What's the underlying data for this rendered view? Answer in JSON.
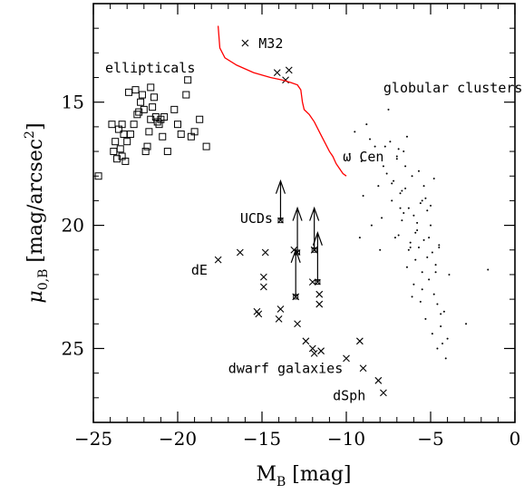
{
  "chart_data": {
    "type": "scatter",
    "xlabel_base": "M",
    "xlabel_sub": "B",
    "xlabel_unit": " [mag]",
    "ylabel_base": "μ",
    "ylabel_sub": "0,B",
    "ylabel_unit": " [mag/arcsec",
    "ylabel_sup": "2",
    "ylabel_close": "]",
    "xlim": [
      -25,
      0
    ],
    "ylim": [
      28,
      11
    ],
    "y_inverted": true,
    "x_ticks": [
      -25,
      -20,
      -15,
      -10,
      -5,
      0
    ],
    "x_tick_labels": [
      "−25",
      "−20",
      "−15",
      "−10",
      "−5",
      "0"
    ],
    "y_ticks": [
      15,
      20,
      25
    ],
    "y_tick_labels": [
      "15",
      "20",
      "25"
    ],
    "grid": false,
    "annotations": [
      {
        "text": "ellipticals",
        "x": -24.3,
        "y": 13.8
      },
      {
        "text": "globular clusters",
        "x": -7.8,
        "y": 14.6
      },
      {
        "text": "M32",
        "x": -15.2,
        "y": 12.8
      },
      {
        "text": "ω Cen",
        "x": -10.2,
        "y": 17.4
      },
      {
        "text": "UCDs",
        "x": -16.3,
        "y": 19.9
      },
      {
        "text": "dE",
        "x": -19.2,
        "y": 22.0
      },
      {
        "text": "dwarf galaxies",
        "x": -17.0,
        "y": 26.0
      },
      {
        "text": "dSph",
        "x": -10.8,
        "y": 27.1
      }
    ],
    "series": [
      {
        "marker": "square",
        "x": [
          -24.7,
          -23.8,
          -23.7,
          -23.5,
          -23.3,
          -23.2,
          -23.4,
          -23.6,
          -23.1,
          -23.0,
          -22.8,
          -22.6,
          -22.5,
          -22.3,
          -22.2,
          -22.1,
          -22.0,
          -21.9,
          -21.8,
          -21.7,
          -21.6,
          -21.5,
          -21.4,
          -21.3,
          -21.2,
          -21.1,
          -21.0,
          -20.9,
          -20.6,
          -20.2,
          -20.0,
          -19.8,
          -19.5,
          -19.4,
          -19.2,
          -19.0,
          -18.7,
          -18.3,
          -23.9,
          -22.4,
          -21.6,
          -20.8,
          -22.9,
          -23.3
        ],
        "y": [
          18.0,
          17.0,
          16.6,
          16.1,
          15.9,
          16.3,
          16.9,
          17.3,
          17.4,
          16.6,
          16.3,
          15.9,
          14.5,
          15.4,
          15.0,
          14.7,
          15.3,
          17.0,
          16.8,
          16.2,
          15.7,
          15.2,
          14.8,
          15.6,
          15.8,
          15.9,
          15.7,
          16.4,
          17.0,
          15.3,
          15.9,
          16.3,
          14.7,
          14.1,
          16.4,
          16.2,
          15.7,
          16.8,
          15.9,
          15.5,
          14.4,
          15.6,
          14.6,
          17.2
        ]
      },
      {
        "marker": "cross",
        "x": [
          -16.0,
          -13.4,
          -14.1,
          -13.6,
          -17.6,
          -16.3,
          -14.8,
          -13.1,
          -11.9,
          -13.0,
          -12.0,
          -14.9,
          -14.9,
          -11.6,
          -11.6,
          -15.3,
          -15.2,
          -13.9,
          -14.0,
          -12.9,
          -12.4,
          -12.0,
          -11.9,
          -11.5,
          -9.2,
          -10.0,
          -9.0,
          -8.1,
          -7.8
        ],
        "y": [
          12.6,
          13.7,
          13.8,
          14.1,
          21.4,
          21.1,
          21.1,
          21.0,
          21.0,
          22.9,
          22.3,
          22.1,
          22.5,
          22.8,
          23.2,
          23.5,
          23.6,
          23.4,
          23.8,
          24.0,
          24.7,
          25.0,
          25.2,
          25.1,
          24.7,
          25.4,
          25.8,
          26.3,
          26.8
        ]
      },
      {
        "marker": "point",
        "x": [
          -9.8,
          -9.5,
          -9.1,
          -9.0,
          -8.8,
          -8.5,
          -8.3,
          -8.1,
          -8.0,
          -7.8,
          -7.6,
          -7.5,
          -7.4,
          -7.3,
          -7.2,
          -7.1,
          -7.0,
          -6.9,
          -6.8,
          -6.7,
          -6.6,
          -6.5,
          -6.4,
          -6.3,
          -6.2,
          -6.1,
          -6.0,
          -5.9,
          -5.8,
          -5.7,
          -5.6,
          -5.5,
          -5.4,
          -5.3,
          -5.2,
          -5.1,
          -5.0,
          -4.9,
          -4.8,
          -4.7,
          -4.6,
          -4.5,
          -4.4,
          -4.2,
          -4.0,
          -3.9,
          -2.9,
          -1.6,
          -6.9,
          -6.4,
          -6.0,
          -5.6,
          -5.3,
          -4.9,
          -4.6,
          -4.3,
          -4.1,
          -5.8,
          -5.5,
          -5.2,
          -6.2,
          -6.6,
          -7.3,
          -7.9,
          -8.6,
          -9.2,
          -6.7,
          -6.1,
          -5.7,
          -5.4,
          -5.0,
          -4.7,
          -4.4,
          -6.5,
          -7.0,
          -7.7,
          -5.9,
          -5.1,
          -4.8,
          -6.3,
          -4.5,
          -5.5,
          -6.8
        ],
        "y": [
          17.1,
          16.2,
          17.4,
          18.8,
          15.9,
          20.0,
          16.8,
          18.4,
          21.0,
          17.6,
          17.9,
          15.3,
          16.6,
          19.0,
          18.2,
          20.5,
          17.3,
          16.9,
          18.7,
          19.8,
          17.0,
          18.5,
          16.4,
          19.3,
          20.9,
          18.0,
          19.6,
          21.4,
          20.2,
          17.8,
          19.1,
          21.9,
          20.6,
          18.9,
          19.4,
          22.2,
          20.0,
          21.1,
          22.8,
          21.6,
          23.2,
          20.8,
          24.1,
          23.5,
          24.6,
          22.0,
          24.0,
          21.8,
          20.4,
          21.7,
          22.4,
          23.1,
          23.8,
          24.4,
          25.0,
          24.8,
          25.4,
          19.9,
          22.6,
          21.3,
          20.7,
          19.5,
          18.3,
          19.7,
          16.5,
          20.5,
          18.6,
          22.9,
          20.9,
          18.4,
          19.2,
          21.9,
          23.6,
          17.6,
          17.2,
          16.8,
          20.3,
          20.5,
          18.1,
          21.0,
          20.9,
          19.0,
          19.3
        ]
      },
      {
        "marker": "line",
        "color": "#ff0000",
        "x": [
          -17.6,
          -17.5,
          -17.2,
          -16.5,
          -15.5,
          -14.5,
          -13.8,
          -13.3,
          -12.9,
          -12.7,
          -12.6,
          -12.5,
          -12.2,
          -11.9,
          -11.6,
          -11.3,
          -11.0,
          -10.8,
          -10.6,
          -10.4,
          -10.2,
          -10.0
        ],
        "y": [
          11.9,
          12.8,
          13.2,
          13.5,
          13.8,
          14.0,
          14.1,
          14.2,
          14.3,
          14.5,
          15.0,
          15.3,
          15.5,
          15.8,
          16.2,
          16.6,
          17.0,
          17.2,
          17.5,
          17.7,
          17.9,
          18.0
        ]
      },
      {
        "marker": "ucd-arrow",
        "x": [
          -13.9,
          -12.9,
          -13.0,
          -11.9,
          -11.7
        ],
        "y_from": [
          19.8,
          21.1,
          22.9,
          21.0,
          22.3
        ],
        "y_to": [
          18.2,
          19.3,
          21.0,
          19.3,
          20.3
        ]
      }
    ]
  }
}
